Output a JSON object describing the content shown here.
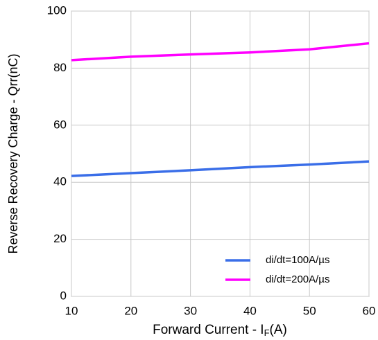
{
  "chart_data": {
    "type": "line",
    "x_label": [
      "Forward Current - I",
      "F",
      "(A)"
    ],
    "y_label": "Reverse Recovery Charge - Qrr(nC)",
    "x": [
      10,
      20,
      30,
      40,
      50,
      60
    ],
    "series": [
      {
        "name": "di/dt=100A/µs",
        "color": "#3a6ee8",
        "values": [
          42.2,
          43.2,
          44.2,
          45.3,
          46.2,
          47.3
        ]
      },
      {
        "name": "di/dt=200A/µs",
        "color": "#ff00ff",
        "values": [
          82.8,
          84.0,
          84.8,
          85.5,
          86.6,
          88.7
        ]
      }
    ],
    "xlim": [
      10,
      60
    ],
    "xticks": [
      10,
      20,
      30,
      40,
      50,
      60
    ],
    "ylim": [
      0,
      100
    ],
    "yticks": [
      0,
      20,
      40,
      60,
      80,
      100
    ],
    "grid": true,
    "legend": "lower right"
  }
}
